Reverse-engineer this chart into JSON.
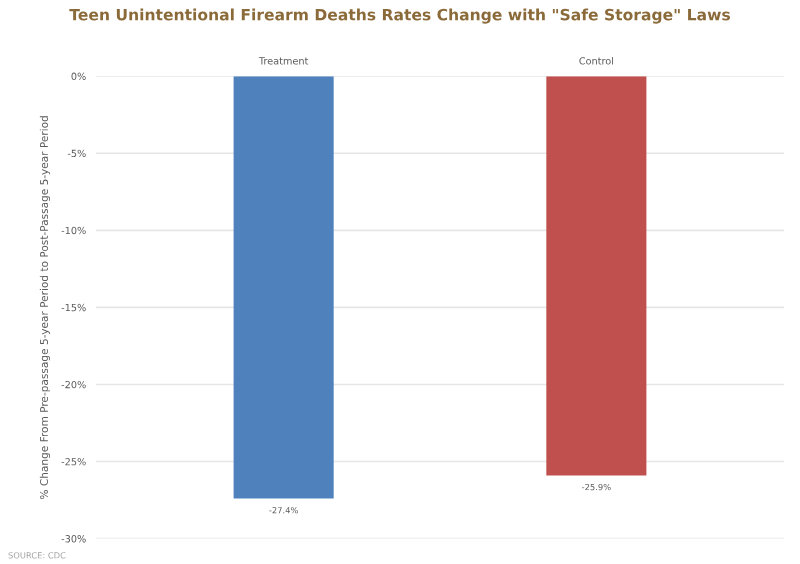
{
  "chart_data": {
    "type": "bar",
    "title": "Teen Unintentional Firearm Deaths Rates Change with \"Safe Storage\" Laws",
    "ylabel": "% Change From Pre-passage 5-year Period to Post-Passage 5-year Period",
    "categories": [
      "Treatment",
      "Control"
    ],
    "values": [
      -27.4,
      -25.9
    ],
    "colors": [
      "#4f81bd",
      "#c0504d"
    ],
    "value_labels": [
      "-27.4%",
      "-25.9%"
    ],
    "ylim": [
      -30,
      0
    ],
    "yticks": [
      {
        "value": 0,
        "label": "0%"
      },
      {
        "value": -5,
        "label": "-5%"
      },
      {
        "value": -10,
        "label": "-10%"
      },
      {
        "value": -15,
        "label": "-15%"
      },
      {
        "value": -20,
        "label": "-20%"
      },
      {
        "value": -25,
        "label": "-25%"
      },
      {
        "value": -30,
        "label": "-30%"
      }
    ],
    "grid": "y",
    "annotations": [
      "SOURCE: CDC"
    ]
  }
}
